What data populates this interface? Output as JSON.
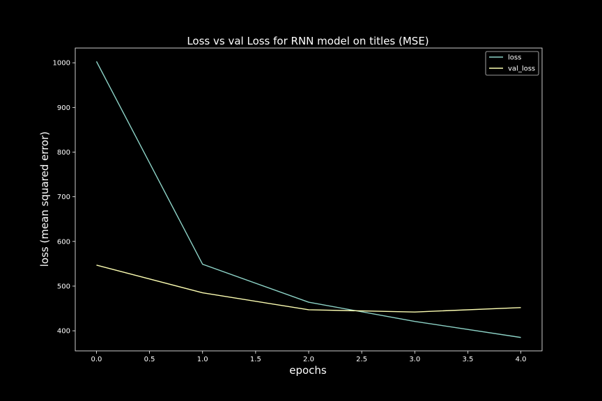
{
  "chart_data": {
    "type": "line",
    "title": "Loss vs val Loss for RNN model on titles (MSE)",
    "xlabel": "epochs",
    "ylabel": "loss (mean squared error)",
    "x": [
      0,
      1,
      2,
      3,
      4
    ],
    "series": [
      {
        "name": "loss",
        "values": [
          1003,
          549,
          464,
          421,
          385
        ],
        "color": "#8dd3c7"
      },
      {
        "name": "val_loss",
        "values": [
          547,
          485,
          447,
          442,
          452
        ],
        "color": "#feffb3"
      }
    ],
    "xlim": [
      -0.2,
      4.2
    ],
    "ylim": [
      355,
      1033
    ],
    "xticks": [
      "0.0",
      "0.5",
      "1.0",
      "1.5",
      "2.0",
      "2.5",
      "3.0",
      "3.5",
      "4.0"
    ],
    "yticks": [
      "400",
      "500",
      "600",
      "700",
      "800",
      "900",
      "1000"
    ],
    "grid": false,
    "legend_position": "top-right",
    "background": "#000000",
    "axes_color": "#ffffff"
  }
}
